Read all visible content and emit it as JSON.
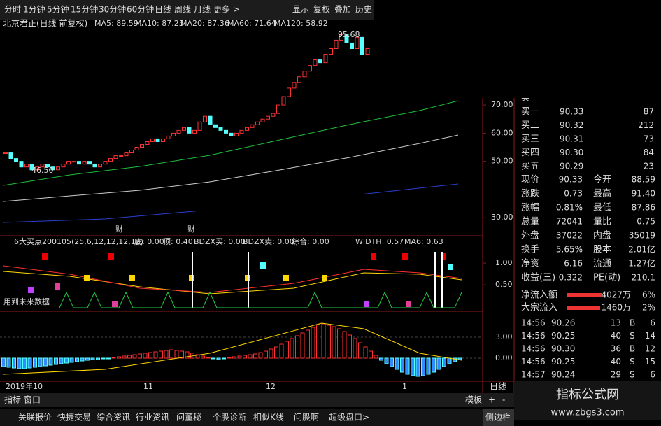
{
  "toolbar": {
    "periods": [
      "分时",
      "1分钟",
      "5分钟",
      "15分钟",
      "30分钟",
      "60分钟",
      "日线",
      "周线",
      "月线",
      "更多 >"
    ],
    "menu": [
      "显示",
      "复权",
      "叠加",
      "历史"
    ]
  },
  "header": {
    "stock": "北京君正(日线 前复权)",
    "ma": [
      "MA5: 89.59",
      "MA10: 87.25",
      "MA20: 87.36",
      "MA60: 71.64",
      "MA120: 58.92"
    ]
  },
  "chart_data": [
    {
      "type": "candlestick",
      "close": [
        53,
        51,
        50,
        48,
        49,
        47,
        48,
        49,
        48,
        47,
        48,
        49,
        50,
        50,
        49,
        50,
        49,
        48,
        49,
        50,
        51,
        52,
        52,
        53,
        54,
        55,
        56,
        57,
        58,
        57,
        58,
        59,
        60,
        61,
        62,
        60,
        61,
        64,
        66,
        63,
        62,
        61,
        60,
        59,
        60,
        61,
        62,
        63,
        64,
        65,
        66,
        67,
        70,
        73,
        76,
        78,
        80,
        82,
        84,
        86,
        85,
        88,
        90,
        93,
        95,
        92,
        90,
        94,
        88,
        90
      ],
      "ylim": [
        24.1,
        100.3
      ],
      "yticks": [
        {
          "value": 30,
          "label": "30.00"
        },
        {
          "value": 50,
          "label": "50.00"
        },
        {
          "value": 60,
          "label": "60.00"
        },
        {
          "value": 70,
          "label": "70.00"
        }
      ],
      "x_labels": [
        "2019年10",
        "11",
        "12",
        "1"
      ],
      "high_label": "95.68",
      "low_label": "46.50",
      "events": [
        "财",
        "财"
      ],
      "period_label": "日线"
    },
    {
      "type": "indicator",
      "title": "6大买点200105(25,6,12,12,12,12)",
      "readouts": [
        "底: 0.00",
        "顶: 0.40",
        "BDZX买: 0.00",
        "BDZX卖: 0.00",
        "综合: 0.00",
        "WIDTH: 0.57",
        "MA6: 0.63"
      ],
      "note": "用到未来数据",
      "ylim": [
        -0.11,
        1.5
      ],
      "yticks": [
        {
          "value": 0.5,
          "label": "0.50"
        },
        {
          "value": 1,
          "label": "1.00"
        }
      ]
    },
    {
      "type": "bar",
      "values": [
        -1.2,
        -1.3,
        -1.4,
        -1.5,
        -1.5,
        -1.4,
        -1.3,
        -1.2,
        -1.1,
        -1.0,
        -0.9,
        -0.8,
        -0.7,
        -0.6,
        -0.5,
        -0.4,
        -0.3,
        -0.2,
        -0.2,
        -0.1,
        -0.1,
        0.1,
        0.2,
        0.3,
        0.4,
        0.5,
        0.6,
        0.7,
        0.8,
        0.9,
        1.0,
        1.1,
        1.2,
        1.1,
        1.0,
        0.9,
        0.7,
        0.5,
        0.3,
        0.1,
        -0.1,
        -0.2,
        -0.1,
        0.1,
        0.2,
        0.3,
        0.4,
        0.5,
        0.6,
        0.8,
        1.0,
        1.3,
        1.6,
        2.0,
        2.4,
        2.8,
        3.2,
        3.6,
        4.0,
        4.4,
        4.8,
        4.9,
        4.7,
        4.5,
        4.2,
        3.8,
        3.3,
        2.8,
        2.2,
        1.6,
        1.0,
        0.4,
        -0.3,
        -0.8,
        -1.2,
        -1.6,
        -2.0,
        -2.3,
        -2.5,
        -2.6,
        -2.5,
        -2.3,
        -2.0,
        -1.6,
        -1.2,
        -0.8,
        -0.5,
        -0.2
      ],
      "ylim": [
        -3.3,
        6.2
      ],
      "yticks": [
        {
          "value": 0,
          "label": "0.00"
        },
        {
          "value": 3,
          "label": "3.00"
        }
      ],
      "colors": {
        "up": "#ff3030",
        "down": "#2f8bff"
      }
    }
  ],
  "order_book": {
    "top": "买",
    "levels": [
      [
        "买一",
        "90.33",
        "87"
      ],
      [
        "买二",
        "90.32",
        "212"
      ],
      [
        "买三",
        "90.31",
        "73"
      ],
      [
        "买四",
        "90.30",
        "84"
      ],
      [
        "买五",
        "90.29",
        "23"
      ]
    ]
  },
  "quote": [
    [
      "现价",
      "90.33",
      "今开",
      "88.59"
    ],
    [
      "涨跌",
      "0.73",
      "最高",
      "91.40"
    ],
    [
      "涨幅",
      "0.81%",
      "最低",
      "87.86"
    ],
    [
      "总量",
      "72041",
      "量比",
      "0.75"
    ],
    [
      "外盘",
      "37022",
      "内盘",
      "35019"
    ]
  ],
  "finance": [
    [
      "换手",
      "5.65%",
      "股本",
      "2.01亿"
    ],
    [
      "净资",
      "6.16",
      "流通",
      "1.27亿"
    ],
    [
      "收益(三)",
      "0.322",
      "PE(动)",
      "210.1"
    ]
  ],
  "flows": [
    [
      "净流入额",
      "4027万",
      "6%"
    ],
    [
      "大宗流入",
      "1460万",
      "2%"
    ]
  ],
  "trades": [
    [
      "14:56",
      "90.26",
      "13",
      "B",
      "6"
    ],
    [
      "14:56",
      "90.25",
      "40",
      "S",
      "14"
    ],
    [
      "14:56",
      "90.30",
      "36",
      "B",
      "12"
    ],
    [
      "14:56",
      "90.25",
      "40",
      "S",
      "15"
    ],
    [
      "14:57",
      "90.24",
      "29",
      "S",
      "6"
    ]
  ],
  "bottom": {
    "left": [
      "指标",
      "窗口"
    ],
    "right": [
      "模板",
      "+",
      "-"
    ],
    "tabs": [
      "关联报价",
      "快捷交易",
      "综合资讯",
      "行业资讯",
      "问董秘",
      "个股诊断",
      "相似K线",
      "问股啊",
      "超级盘口>"
    ],
    "sidebar": "侧边栏"
  },
  "watermark": {
    "title": "指标公式网",
    "url": "www.zbgs3.com"
  }
}
